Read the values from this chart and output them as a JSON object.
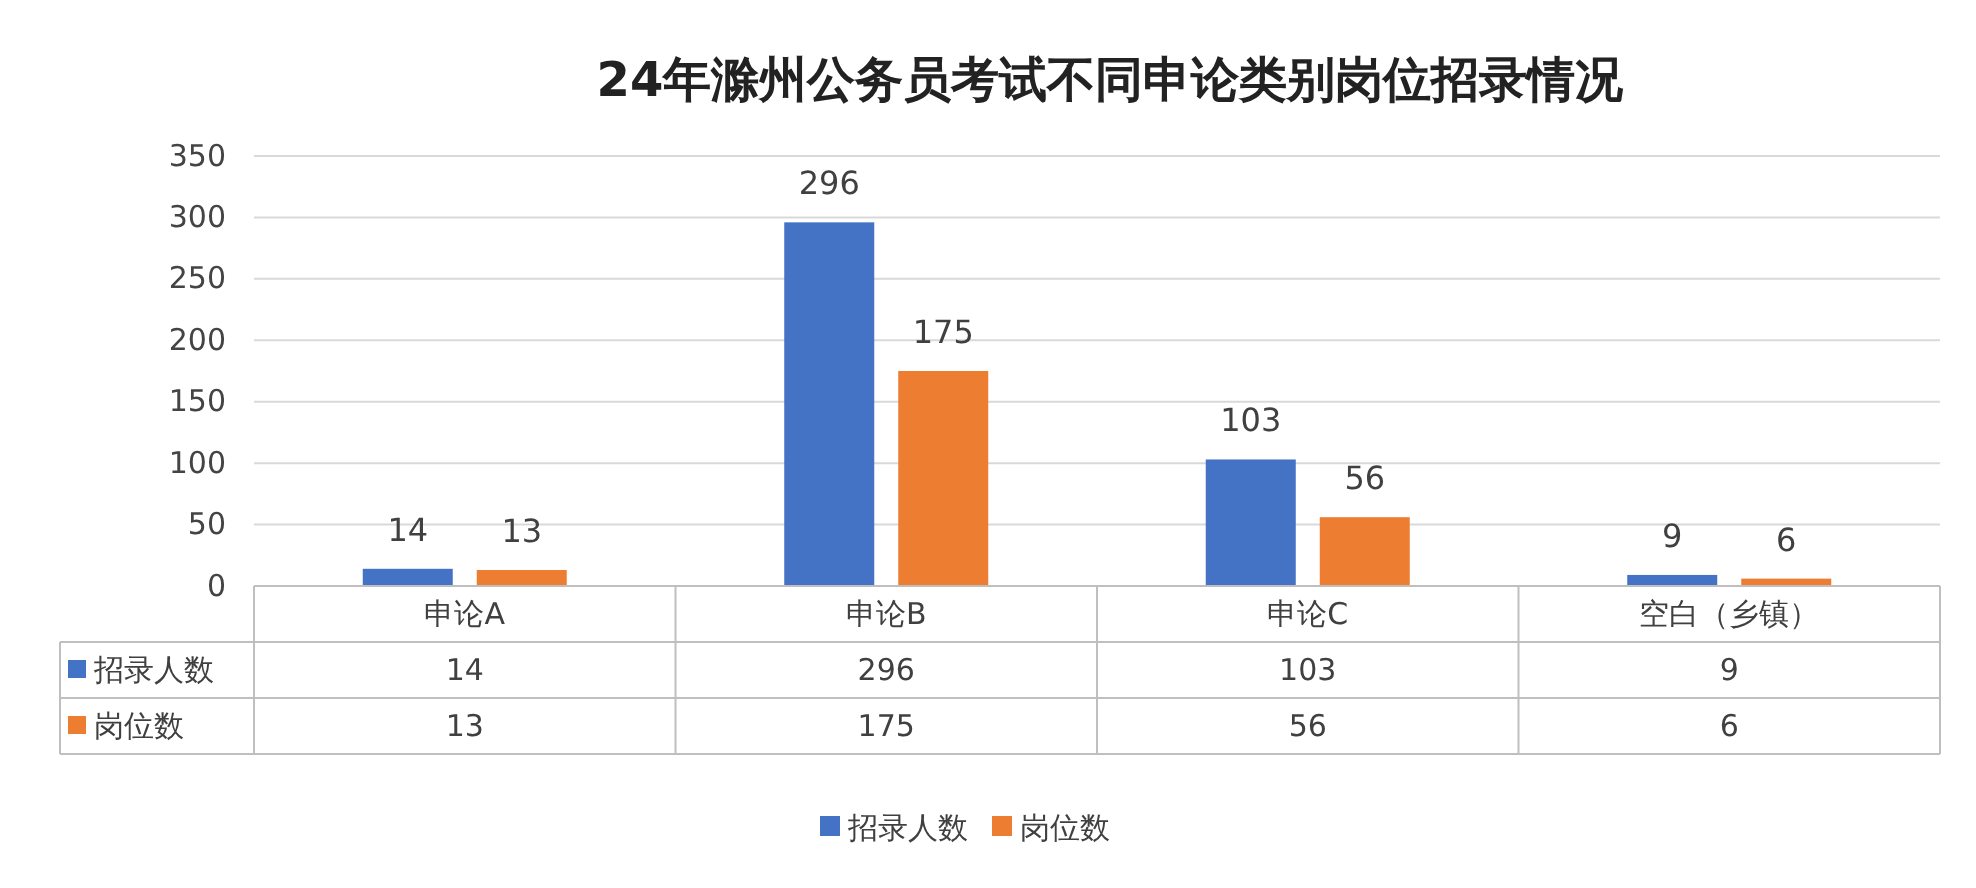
{
  "chart_data": {
    "type": "bar",
    "title": "24年滁州公务员考试不同申论类别岗位招录情况",
    "categories": [
      "申论A",
      "申论B",
      "申论C",
      "空白（乡镇）"
    ],
    "series": [
      {
        "name": "招录人数",
        "color": "#4472c4",
        "values": [
          14,
          296,
          103,
          9
        ]
      },
      {
        "name": "岗位数",
        "color": "#ed7d31",
        "values": [
          13,
          175,
          56,
          6
        ]
      }
    ],
    "annotations": [
      "14",
      "296",
      "103",
      "9",
      "13",
      "175",
      "56",
      "6"
    ],
    "ylim": [
      0,
      350
    ],
    "yticks": [
      0,
      50,
      100,
      150,
      200,
      250,
      300,
      350
    ],
    "grid": "y",
    "legend": "bottom",
    "data_labels": true
  }
}
